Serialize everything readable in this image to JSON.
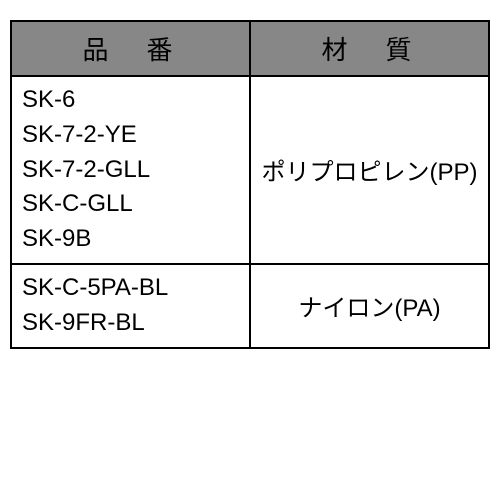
{
  "table": {
    "columns": [
      "品　番",
      "材　質"
    ],
    "groups": [
      {
        "parts": [
          "SK-6",
          "SK-7-2-YE",
          "SK-7-2-GLL",
          "SK-C-GLL",
          "SK-9B"
        ],
        "material": "ポリプロピレン(PP)"
      },
      {
        "parts": [
          "SK-C-5PA-BL",
          "SK-9FR-BL"
        ],
        "material": "ナイロン(PA)"
      }
    ],
    "style": {
      "header_bg": "#878787",
      "border_color": "#000000",
      "text_color": "#000000",
      "header_fontsize": 26,
      "cell_fontsize": 24
    }
  }
}
